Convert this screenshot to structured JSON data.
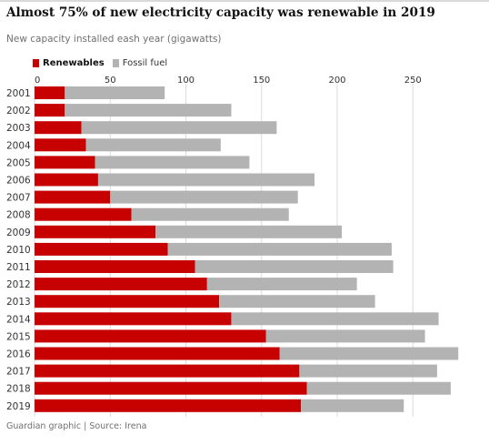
{
  "title": "Almost 75% of new electricity capacity was renewable in 2019",
  "subtitle": "New capacity installed eash year (gigawatts)",
  "source": "Guardian graphic | Source: Irena",
  "colors": {
    "renewables": "#c70000",
    "fossil": "#b3b3b3",
    "grid": "#dcdcdc",
    "text": "#333333"
  },
  "chart_data": {
    "type": "bar",
    "orientation": "horizontal",
    "stacked": true,
    "categories": [
      "2001",
      "2002",
      "2003",
      "2004",
      "2005",
      "2006",
      "2007",
      "2008",
      "2009",
      "2010",
      "2011",
      "2012",
      "2013",
      "2014",
      "2015",
      "2016",
      "2017",
      "2018",
      "2019"
    ],
    "series": [
      {
        "name": "Renewables",
        "color": "#c70000",
        "values": [
          20,
          20,
          31,
          34,
          40,
          42,
          50,
          64,
          80,
          88,
          106,
          114,
          122,
          130,
          153,
          162,
          175,
          180,
          176
        ]
      },
      {
        "name": "Fossil fuel",
        "color": "#b3b3b3",
        "values": [
          66,
          110,
          129,
          89,
          102,
          143,
          124,
          104,
          123,
          148,
          131,
          99,
          103,
          137,
          105,
          118,
          91,
          95,
          68
        ]
      }
    ],
    "xlim": [
      0,
      280
    ],
    "xticks": [
      0,
      50,
      100,
      150,
      200,
      250
    ],
    "grid": true,
    "legend_position": "top-left"
  }
}
